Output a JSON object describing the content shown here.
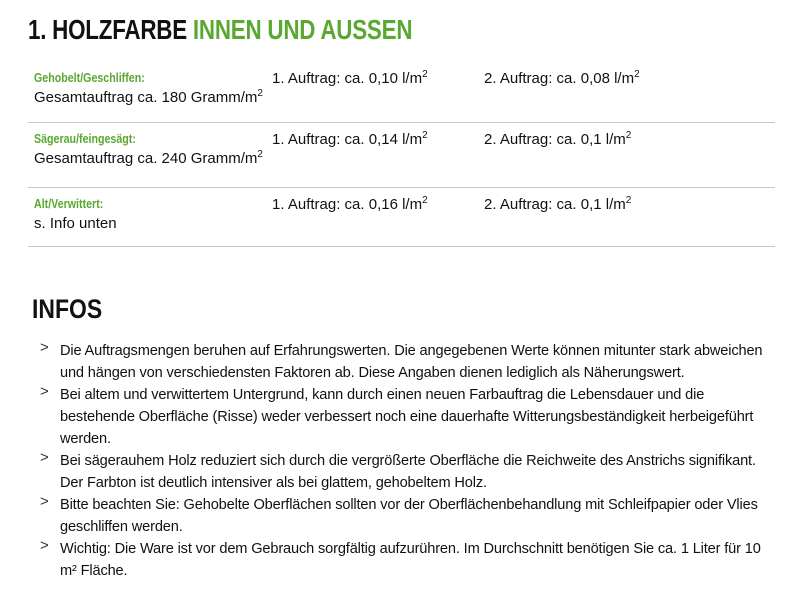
{
  "title": {
    "part1": "1. HOLZFARBE",
    "part2": "INNEN UND AUSSEN"
  },
  "colors": {
    "accent": "#5aa832",
    "divider": "#c8c8c8"
  },
  "rows": [
    {
      "label": "Gehobelt/Geschliffen:",
      "sub": "Gesamtauftrag ca. 180 Gramm/m",
      "sub_sup": "2",
      "c1": "1. Auftrag: ca. 0,10 l/m",
      "c1_sup": "2",
      "c2": "2. Auftrag: ca. 0,08 l/m",
      "c2_sup": "2"
    },
    {
      "label": "Sägerau/feingesägt:",
      "sub": "Gesamtauftrag ca. 240 Gramm/m",
      "sub_sup": "2",
      "c1": "1. Auftrag: ca. 0,14 l/m",
      "c1_sup": "2",
      "c2": "2. Auftrag: ca. 0,1 l/m",
      "c2_sup": "2"
    },
    {
      "label": "Alt/Verwittert:",
      "sub": "s. Info unten",
      "sub_sup": "",
      "c1": "1. Auftrag: ca. 0,16 l/m",
      "c1_sup": "2",
      "c2": "2. Auftrag: ca. 0,1 l/m",
      "c2_sup": "2"
    }
  ],
  "infos": {
    "heading": "INFOS",
    "bullet_icon": "chevron-right-icon",
    "items": [
      "Die Auftragsmengen beruhen auf Erfahrungswerten. Die angegebenen Werte können mitunter stark abweichen und hängen von verschiedensten Faktoren ab. Diese Angaben dienen lediglich als Näherungswert.",
      "Bei altem und verwittertem Untergrund, kann durch einen neuen Farbauftrag die Lebensdauer und die bestehende Oberfläche (Risse) weder verbessert noch eine dauerhafte Witterungsbeständigkeit herbeigeführt werden.",
      "Bei sägerauhem Holz reduziert sich durch die vergrößerte Oberfläche die Reichweite des Anstrichs signifikant. Der Farbton ist deutlich intensiver als bei glattem, gehobeltem Holz.",
      "Bitte beachten Sie: Gehobelte Oberflächen sollten vor der Oberflächenbehandlung mit Schleifpapier oder Vlies geschliffen werden.",
      "Wichtig: Die Ware ist vor dem Gebrauch sorgfältig aufzurühren. Im Durchschnitt benötigen Sie ca. 1 Liter für 10 m² Fläche."
    ]
  }
}
